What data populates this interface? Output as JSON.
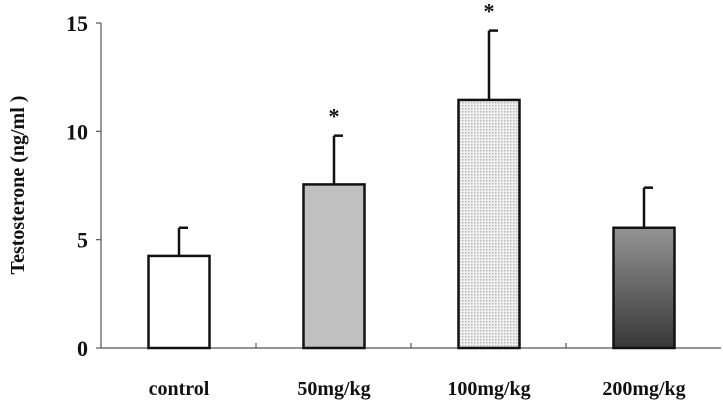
{
  "chart_data": {
    "type": "bar",
    "title": "",
    "xlabel": "",
    "ylabel": "Testosterone (ng/ml )",
    "ylim": [
      0,
      15
    ],
    "yticks": [
      "0",
      "5",
      "10",
      "15"
    ],
    "categories": [
      "control",
      "50mg/kg",
      "100mg/kg",
      "200mg/kg"
    ],
    "values": [
      4.25,
      7.55,
      11.45,
      5.55
    ],
    "error_plus": [
      1.3,
      2.25,
      3.2,
      1.85
    ],
    "significance": [
      "",
      "*",
      "*",
      ""
    ],
    "bar_fills": [
      "white",
      "#c0c0c0",
      "dotted light gray",
      "gradient #8f8f8f to #3a3a3a"
    ],
    "grid": false
  }
}
